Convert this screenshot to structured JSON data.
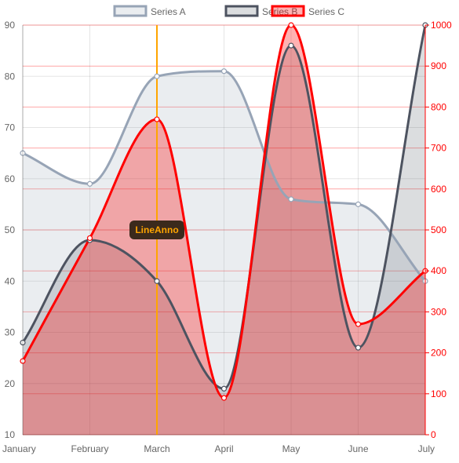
{
  "chart_data": {
    "type": "line",
    "categories": [
      "January",
      "February",
      "March",
      "April",
      "May",
      "June",
      "July"
    ],
    "series": [
      {
        "name": "Series A",
        "axis": "left",
        "values": [
          65,
          59,
          80,
          81,
          56,
          55,
          40
        ],
        "color": "#97a4b6",
        "fill": "rgba(151,164,182,0.2)"
      },
      {
        "name": "Series B",
        "axis": "left",
        "values": [
          28,
          48,
          40,
          19,
          86,
          27,
          90
        ],
        "color": "#4d5360",
        "fill": "rgba(77,83,96,0.2)"
      },
      {
        "name": "Series C",
        "axis": "right",
        "values": [
          180,
          480,
          770,
          90,
          1000,
          270,
          400
        ],
        "color": "#ff0000",
        "fill": "rgba(255,0,0,0.3)"
      }
    ],
    "y_left": {
      "min": 10,
      "max": 90,
      "ticks": [
        "10",
        "20",
        "30",
        "40",
        "50",
        "60",
        "70",
        "80",
        "90"
      ]
    },
    "y_right": {
      "min": 0,
      "max": 1000,
      "ticks": [
        "0",
        "100",
        "200",
        "300",
        "400",
        "500",
        "600",
        "700",
        "800",
        "900",
        "1000"
      ],
      "color": "#ff0000"
    },
    "grid": true,
    "legend": {
      "placement": "top"
    },
    "annotation": {
      "type": "vertical-line",
      "x": "March",
      "label": "LineAnno",
      "color": "#ffa500",
      "label_background": "#3b2a1c"
    }
  }
}
